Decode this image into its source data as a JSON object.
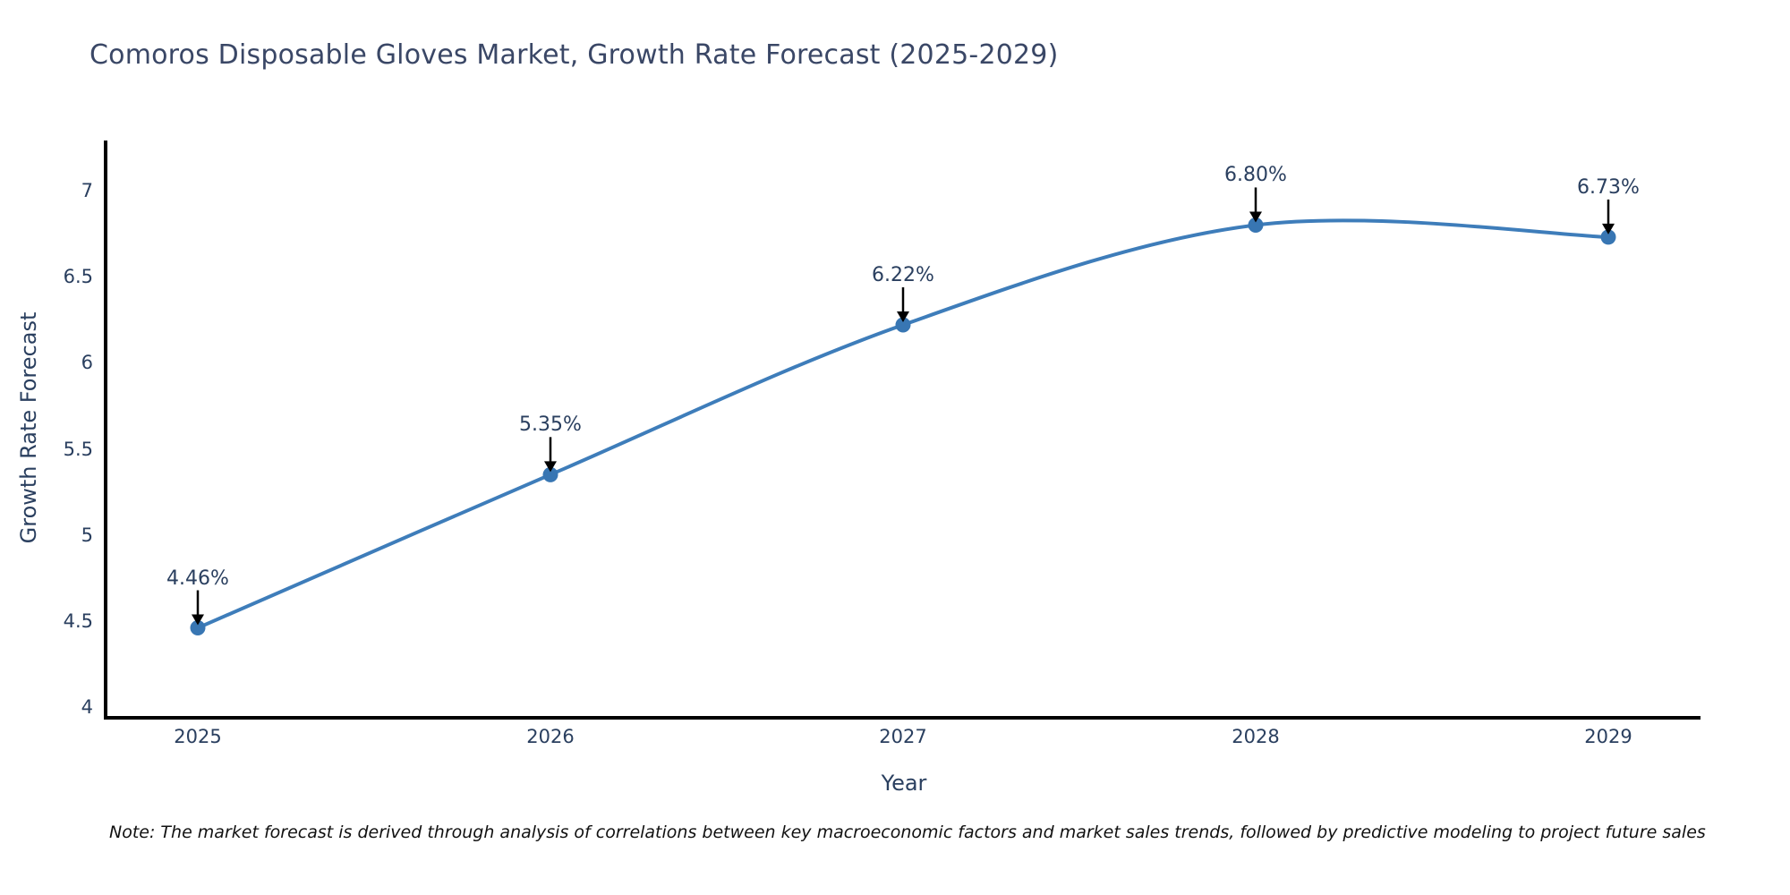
{
  "page": {
    "note": "Note: The market forecast is derived through analysis of correlations between key macroeconomic factors and market sales trends, followed by predictive modeling to project future sales"
  },
  "chart_data": {
    "type": "line",
    "title": "Comoros Disposable Gloves Market, Growth Rate Forecast (2025-2029)",
    "xlabel": "Year",
    "ylabel": "Growth Rate Forecast",
    "x": [
      2025,
      2026,
      2027,
      2028,
      2029
    ],
    "series": [
      {
        "name": "Growth Rate Forecast",
        "values": [
          4.46,
          5.35,
          6.22,
          6.8,
          6.73
        ]
      }
    ],
    "point_labels": [
      "4.46%",
      "5.35%",
      "6.22%",
      "6.80%",
      "6.73%"
    ],
    "x_tick_labels": [
      "2025",
      "2026",
      "2027",
      "2028",
      "2029"
    ],
    "y_tick_values": [
      4,
      4.5,
      5,
      5.5,
      6,
      6.5,
      7
    ],
    "y_tick_labels": [
      "4",
      "4.5",
      "5",
      "5.5",
      "6",
      "6.5",
      "7"
    ],
    "ylim": [
      4,
      7.3
    ],
    "line_shape": "spline",
    "grid": false,
    "legend": "none",
    "annotation_arrows": true,
    "colors": {
      "line": "#3e7dba",
      "marker": "#3876b3",
      "axis_line": "#000000",
      "arrow": "#000000",
      "text": "#2a3f5f",
      "title": "#3a4766",
      "note_text": "#111111",
      "background": "#ffffff"
    }
  }
}
